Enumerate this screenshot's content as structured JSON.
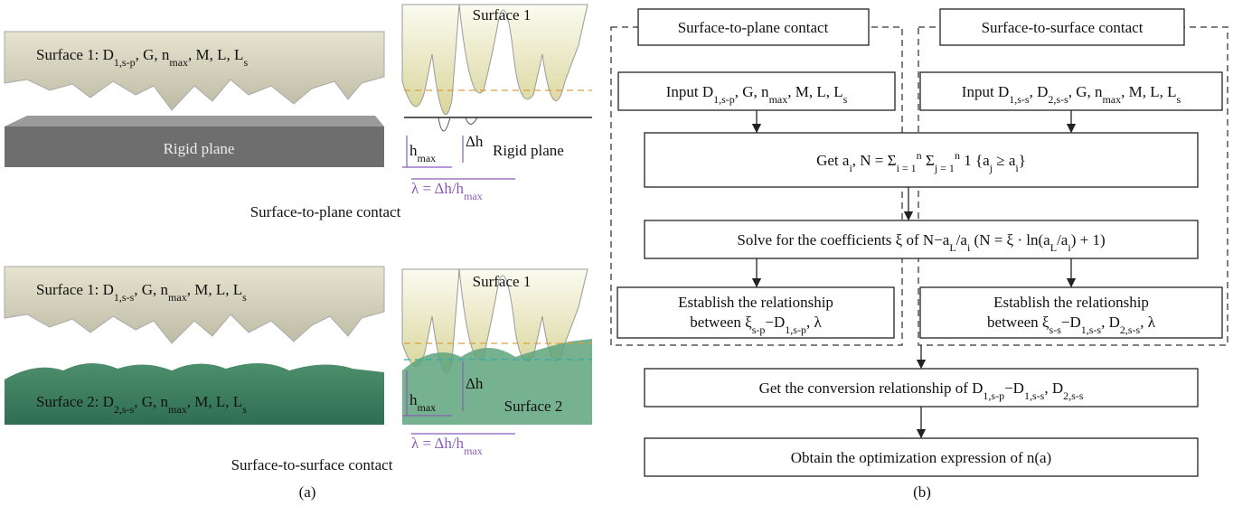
{
  "panel_a": {
    "top": {
      "surface_label": [
        "Surface 1: ",
        "D",
        {
          "sub": "1,s-p"
        },
        ", G, n",
        {
          "sub": "max"
        },
        ", M, L, L",
        {
          "sub": "s"
        }
      ],
      "plane_label": "Rigid plane"
    },
    "inset_top": {
      "surface": "Surface 1",
      "hmax": [
        "h",
        {
          "sub": "max"
        }
      ],
      "dh": "Δh",
      "plane": "Rigid plane",
      "lambda": [
        "λ = Δh/h",
        {
          "sub": "max"
        }
      ]
    },
    "caption_top": "Surface-to-plane contact",
    "bottom": {
      "surface1_label": [
        "Surface 1: ",
        "D",
        {
          "sub": "1,s-s"
        },
        ", G, n",
        {
          "sub": "max"
        },
        ", M, L, L",
        {
          "sub": "s"
        }
      ],
      "surface2_label": [
        "Surface 2: ",
        "D",
        {
          "sub": "2,s-s"
        },
        ", G, n",
        {
          "sub": "max"
        },
        ", M, L, L",
        {
          "sub": "s"
        }
      ]
    },
    "inset_bottom": {
      "surface1": "Surface 1",
      "surface2": "Surface 2",
      "hmax": [
        "h",
        {
          "sub": "max"
        }
      ],
      "dh": "Δh",
      "lambda": [
        "λ = Δh/h",
        {
          "sub": "max"
        }
      ]
    },
    "caption_bottom": "Surface-to-surface contact",
    "label": "(a)"
  },
  "panel_b": {
    "group_left": "Surface-to-plane contact",
    "group_right": "Surface-to-surface contact",
    "input_left": [
      "Input ",
      "D",
      {
        "sub": "1,s-p"
      },
      ", G, n",
      {
        "sub": "max"
      },
      ", M, L, L",
      {
        "sub": "s"
      }
    ],
    "input_right": [
      "Input ",
      "D",
      {
        "sub": "1,s-s"
      },
      ", D",
      {
        "sub": "2,s-s"
      },
      ", G, n",
      {
        "sub": "max"
      },
      ", M, L, L",
      {
        "sub": "s"
      }
    ],
    "get_a": [
      "Get a",
      {
        "sub": "i"
      },
      ", N = ",
      "Σ",
      {
        "sub": "i = 1"
      },
      {
        "sup": "n"
      },
      " Σ",
      {
        "sub": "j = 1"
      },
      {
        "sup": "n"
      },
      " 1 {a",
      {
        "sub": "j"
      },
      " ≥ a",
      {
        "sub": "i"
      },
      "}"
    ],
    "solve": [
      "Solve for the coefficients ξ of N−a",
      {
        "sub": "L"
      },
      "/a",
      {
        "sub": "i"
      },
      " (N = ξ · ln(a",
      {
        "sub": "L"
      },
      "/a",
      {
        "sub": "i"
      },
      ") + 1)"
    ],
    "establish_left": [
      "Establish the relationship",
      [
        "between ξ",
        {
          "sub": "s-p"
        },
        "−D",
        {
          "sub": "1,s-p"
        },
        ", λ"
      ]
    ],
    "establish_right": [
      "Establish the relationship",
      [
        "between ξ",
        {
          "sub": "s-s"
        },
        "−D",
        {
          "sub": "1,s-s"
        },
        ", D",
        {
          "sub": "2,s-s"
        },
        ", λ"
      ]
    ],
    "conversion": [
      "Get the conversion relationship of D",
      {
        "sub": "1,s-p"
      },
      "−D",
      {
        "sub": "1,s-s"
      },
      ", D",
      {
        "sub": "2,s-s"
      }
    ],
    "obtain": "Obtain the optimization expression of n(a)",
    "label": "(b)"
  }
}
